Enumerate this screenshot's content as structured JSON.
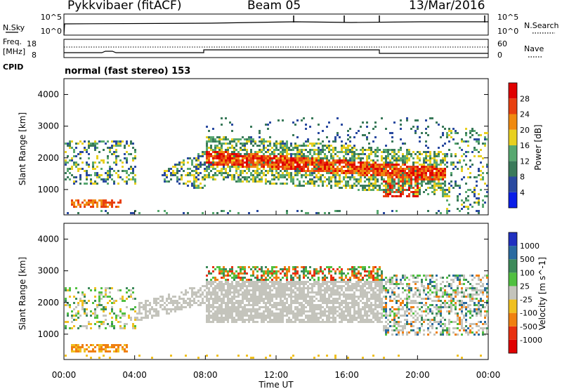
{
  "header": {
    "station": "Pykkvibaer (fitACF)",
    "beam": "Beam 05",
    "date": "13/Mar/2016"
  },
  "panels": {
    "nsky_label": "N.Sky",
    "nsearch_label": "N.Search",
    "nsky_ticks": [
      "10^5",
      "10^0"
    ],
    "nsearch_ticks": [
      "10^5",
      "10^0"
    ],
    "freq_label": "Freq.",
    "freq_unit": "[MHz]",
    "freq_ticks": [
      "18",
      "8"
    ],
    "nave_label": "Nave",
    "nave_ticks": [
      "60",
      "0"
    ],
    "cpid_label": "CPID",
    "cpid_mode": "normal (fast stereo) 153"
  },
  "chart_data": {
    "type": "heatmap",
    "xlabel": "Time UT",
    "x_ticks": [
      "00:00",
      "04:00",
      "08:00",
      "12:00",
      "16:00",
      "20:00",
      "00:00"
    ],
    "xlim_hours": [
      0,
      24
    ],
    "power_panel": {
      "ylabel": "Slant Range [km]",
      "ylim": [
        200,
        4500
      ],
      "y_ticks": [
        1000,
        2000,
        3000,
        4000
      ],
      "colorbar_label": "Power [dB]",
      "colorbar_ticks": [
        4,
        8,
        12,
        16,
        20,
        24,
        28
      ],
      "colorbar_range": [
        0,
        32
      ],
      "colors": [
        "#0a1ee8",
        "#2a4aa0",
        "#3a7a5a",
        "#58a870",
        "#e8d020",
        "#f08a10",
        "#e84010",
        "#e00000"
      ]
    },
    "velocity_panel": {
      "ylabel": "Slant Range [km]",
      "ylim": [
        200,
        4500
      ],
      "y_ticks": [
        1000,
        2000,
        3000,
        4000
      ],
      "colorbar_label": "Velocity [m s^-1]",
      "colorbar_ticks": [
        "1000",
        "500",
        "100",
        "25",
        "-25",
        "-100",
        "-500",
        "-1000"
      ],
      "colors": [
        "#2030c0",
        "#2a6aa0",
        "#3c8a5a",
        "#50c040",
        "#c4c4bc",
        "#f0c020",
        "#f08010",
        "#e83010",
        "#e00000"
      ]
    }
  }
}
